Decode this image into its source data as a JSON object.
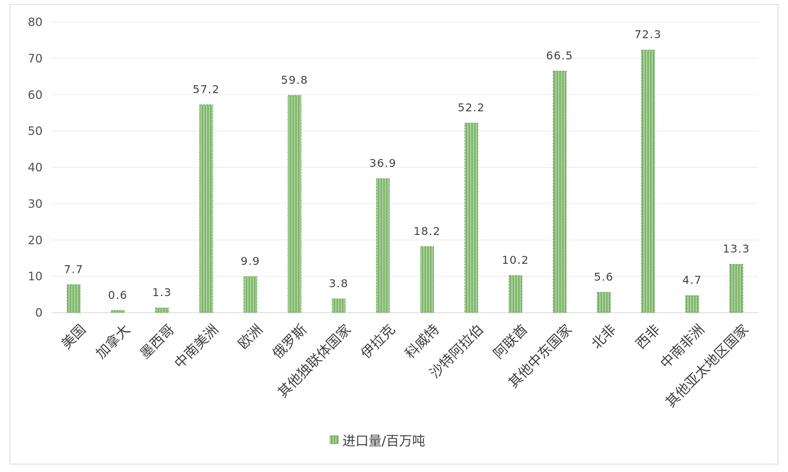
{
  "chart_data": {
    "type": "bar",
    "categories": [
      "美国",
      "加拿大",
      "墨西哥",
      "中南美洲",
      "欧洲",
      "俄罗斯",
      "其他独联体国家",
      "伊拉克",
      "科威特",
      "沙特阿拉伯",
      "阿联酋",
      "其他中东国家",
      "北非",
      "西非",
      "中南非洲",
      "其他亚太地区国家"
    ],
    "series": [
      {
        "name": "进口量/百万吨",
        "values": [
          7.7,
          0.6,
          1.3,
          57.2,
          9.9,
          59.8,
          3.8,
          36.9,
          18.2,
          52.2,
          10.2,
          66.5,
          5.6,
          72.3,
          4.7,
          13.3
        ]
      }
    ],
    "ylim": [
      0,
      80
    ],
    "yticks": [
      0,
      10,
      20,
      30,
      40,
      50,
      60,
      70,
      80
    ],
    "grid": true,
    "legend_position": "bottom",
    "colors": {
      "bar": "#8ec07c",
      "bar_dark": "#6aa35a",
      "bar_light": "#c4e0b7",
      "grid": "#ebebeb",
      "axis": "#d0d0d0"
    }
  }
}
